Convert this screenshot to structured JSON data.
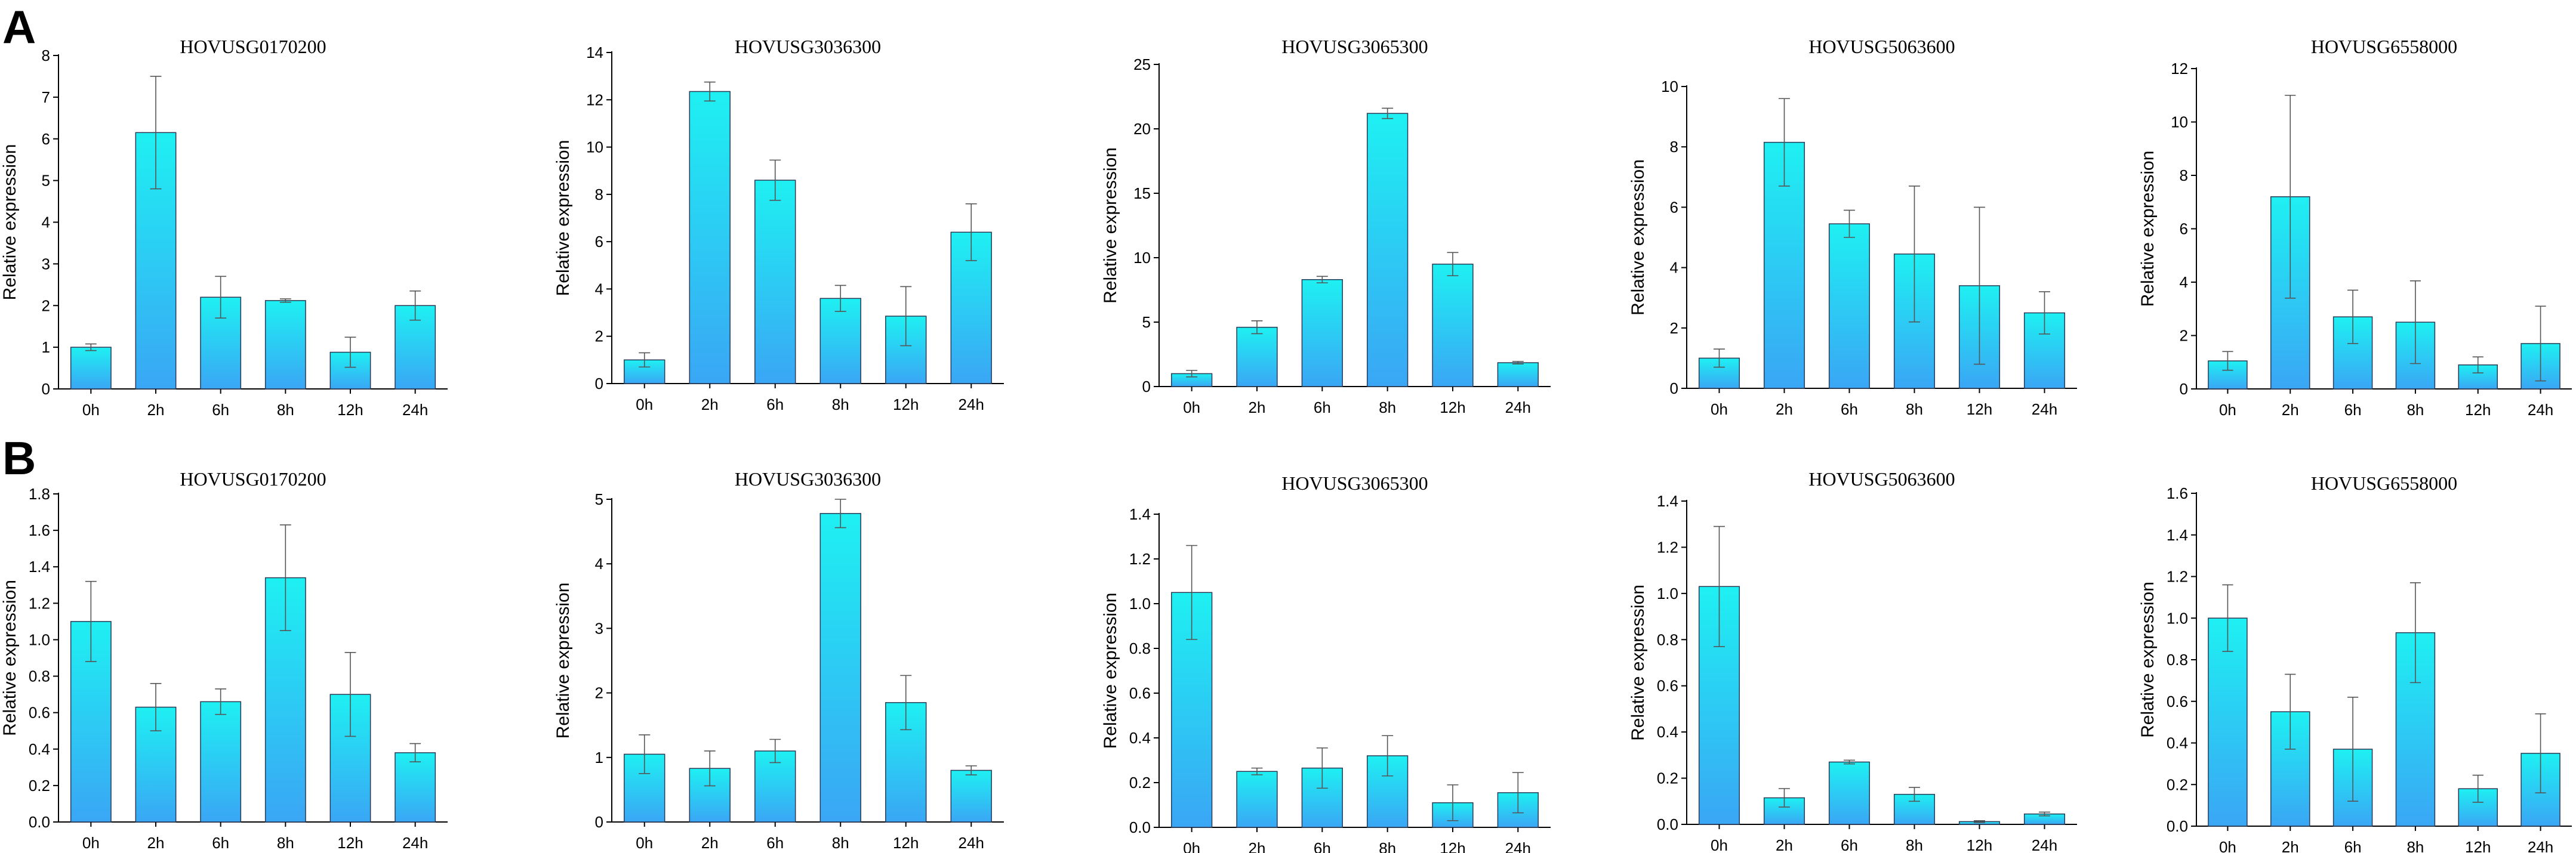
{
  "figure": {
    "panel_labels": [
      "A",
      "B"
    ]
  },
  "colors": {
    "bar_top": "#1ef0f2",
    "bar_bottom": "#3aa6f5",
    "bar_edge": "#2a3a55",
    "error_bar": "#555555"
  },
  "chart_data": [
    {
      "panel": "A",
      "type": "bar",
      "title": "HOVUSG0170200",
      "xlabel": "",
      "ylabel": "Relative expression",
      "categories": [
        "0h",
        "2h",
        "6h",
        "8h",
        "12h",
        "24h"
      ],
      "values": [
        1.0,
        6.15,
        2.2,
        2.12,
        0.88,
        2.0
      ],
      "errors": [
        0.08,
        1.35,
        0.5,
        0.04,
        0.36,
        0.35
      ],
      "ylim": [
        0,
        8
      ],
      "yticks": [
        0,
        1,
        2,
        3,
        4,
        5,
        6,
        7,
        8
      ]
    },
    {
      "panel": "A",
      "type": "bar",
      "title": "HOVUSG3036300",
      "xlabel": "",
      "ylabel": "Relative expression",
      "categories": [
        "0h",
        "2h",
        "6h",
        "8h",
        "12h",
        "24h"
      ],
      "values": [
        1.0,
        12.35,
        8.6,
        3.6,
        2.85,
        6.4
      ],
      "errors": [
        0.3,
        0.4,
        0.85,
        0.55,
        1.25,
        1.2
      ],
      "ylim": [
        0,
        14
      ],
      "yticks": [
        0,
        2,
        4,
        6,
        8,
        10,
        12,
        14
      ]
    },
    {
      "panel": "A",
      "type": "bar",
      "title": "HOVUSG3065300",
      "xlabel": "",
      "ylabel": "Relative expression",
      "categories": [
        "0h",
        "2h",
        "6h",
        "8h",
        "12h",
        "24h"
      ],
      "values": [
        1.0,
        4.6,
        8.3,
        21.2,
        9.5,
        1.85
      ],
      "errors": [
        0.25,
        0.5,
        0.25,
        0.4,
        0.9,
        0.1
      ],
      "ylim": [
        0,
        25
      ],
      "yticks": [
        0,
        5,
        10,
        15,
        20,
        25
      ]
    },
    {
      "panel": "A",
      "type": "bar",
      "title": "HOVUSG5063600",
      "xlabel": "",
      "ylabel": "Relative expression",
      "categories": [
        "0h",
        "2h",
        "6h",
        "8h",
        "12h",
        "24h"
      ],
      "values": [
        1.0,
        8.15,
        5.45,
        4.45,
        3.4,
        2.5
      ],
      "errors": [
        0.3,
        1.45,
        0.45,
        2.25,
        2.6,
        0.7
      ],
      "ylim": [
        0,
        10
      ],
      "yticks": [
        0,
        2,
        4,
        6,
        8,
        10
      ]
    },
    {
      "panel": "A",
      "type": "bar",
      "title": "HOVUSG6558000",
      "xlabel": "",
      "ylabel": "Relative expression",
      "categories": [
        "0h",
        "2h",
        "6h",
        "8h",
        "12h",
        "24h"
      ],
      "values": [
        1.05,
        7.2,
        2.7,
        2.5,
        0.9,
        1.7
      ],
      "errors": [
        0.35,
        3.8,
        1.0,
        1.55,
        0.3,
        1.4
      ],
      "ylim": [
        0,
        12
      ],
      "yticks": [
        0,
        2,
        4,
        6,
        8,
        10,
        12
      ]
    },
    {
      "panel": "B",
      "type": "bar",
      "title": "HOVUSG0170200",
      "xlabel": "",
      "ylabel": "Relative expression",
      "categories": [
        "0h",
        "2h",
        "6h",
        "8h",
        "12h",
        "24h"
      ],
      "values": [
        1.1,
        0.63,
        0.66,
        1.34,
        0.7,
        0.38
      ],
      "errors": [
        0.22,
        0.13,
        0.07,
        0.29,
        0.23,
        0.05
      ],
      "ylim": [
        0,
        1.8
      ],
      "yticks": [
        0,
        0.2,
        0.4,
        0.6,
        0.8,
        1.0,
        1.2,
        1.4,
        1.6,
        1.8
      ]
    },
    {
      "panel": "B",
      "type": "bar",
      "title": "HOVUSG3036300",
      "xlabel": "",
      "ylabel": "Relative expression",
      "categories": [
        "0h",
        "2h",
        "6h",
        "8h",
        "12h",
        "24h"
      ],
      "values": [
        1.05,
        0.83,
        1.1,
        4.78,
        1.85,
        0.8
      ],
      "errors": [
        0.3,
        0.27,
        0.18,
        0.22,
        0.42,
        0.07
      ],
      "ylim": [
        0,
        5
      ],
      "yticks": [
        0,
        1,
        2,
        3,
        4,
        5
      ]
    },
    {
      "panel": "B",
      "type": "bar",
      "title": "HOVUSG3065300",
      "xlabel": "",
      "ylabel": "Relative expression",
      "categories": [
        "0h",
        "2h",
        "6h",
        "8h",
        "12h",
        "24h"
      ],
      "values": [
        1.05,
        0.25,
        0.265,
        0.32,
        0.11,
        0.155
      ],
      "errors": [
        0.21,
        0.015,
        0.09,
        0.09,
        0.08,
        0.09
      ],
      "ylim": [
        0,
        1.4
      ],
      "yticks": [
        0,
        0.2,
        0.4,
        0.6,
        0.8,
        1.0,
        1.2,
        1.4
      ]
    },
    {
      "panel": "B",
      "type": "bar",
      "title": "HOVUSG5063600",
      "xlabel": "",
      "ylabel": "Relative expression",
      "categories": [
        "0h",
        "2h",
        "6h",
        "8h",
        "12h",
        "24h"
      ],
      "values": [
        1.03,
        0.115,
        0.27,
        0.13,
        0.012,
        0.045
      ],
      "errors": [
        0.26,
        0.04,
        0.008,
        0.03,
        0.004,
        0.008
      ],
      "ylim": [
        0,
        1.4
      ],
      "yticks": [
        0,
        0.2,
        0.4,
        0.6,
        0.8,
        1.0,
        1.2,
        1.4
      ]
    },
    {
      "panel": "B",
      "type": "bar",
      "title": "HOVUSG6558000",
      "xlabel": "",
      "ylabel": "Relative expression",
      "categories": [
        "0h",
        "2h",
        "6h",
        "8h",
        "12h",
        "24h"
      ],
      "values": [
        1.0,
        0.55,
        0.37,
        0.93,
        0.18,
        0.35
      ],
      "errors": [
        0.16,
        0.18,
        0.25,
        0.24,
        0.065,
        0.19
      ],
      "ylim": [
        0,
        1.6
      ],
      "yticks": [
        0,
        0.2,
        0.4,
        0.6,
        0.8,
        1.0,
        1.2,
        1.4,
        1.6
      ]
    }
  ]
}
